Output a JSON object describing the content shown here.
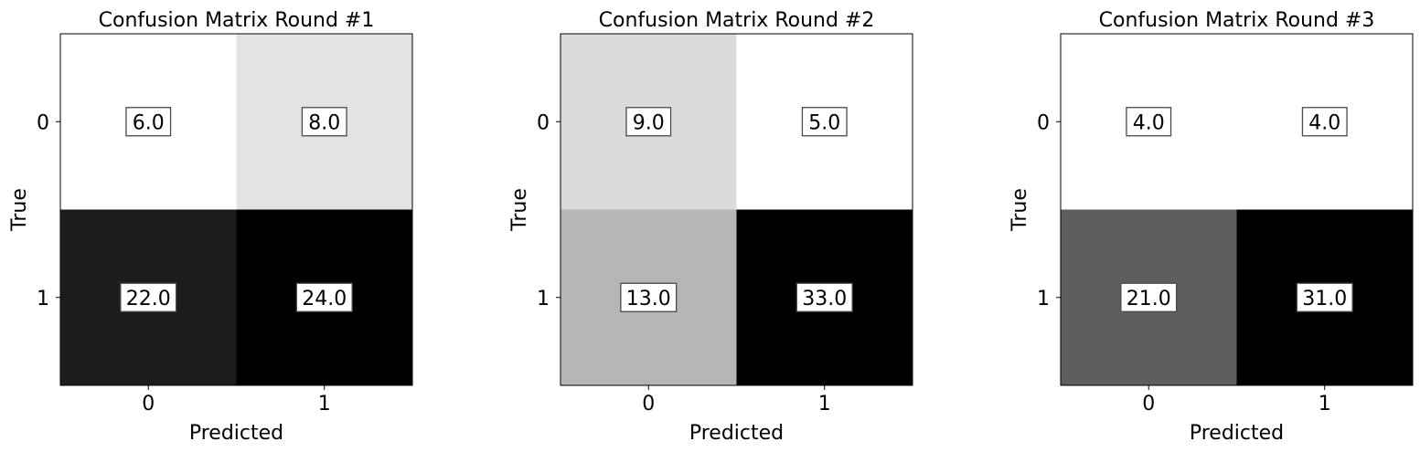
{
  "chart_data": [
    {
      "type": "heatmap",
      "title": "Confusion Matrix Round #1",
      "xlabel": "Predicted",
      "ylabel": "True",
      "x_tick_labels": [
        "0",
        "1"
      ],
      "y_tick_labels": [
        "0",
        "1"
      ],
      "matrix": [
        [
          6.0,
          8.0
        ],
        [
          22.0,
          24.0
        ]
      ],
      "cell_labels": [
        [
          "6.0",
          "8.0"
        ],
        [
          "22.0",
          "24.0"
        ]
      ],
      "colormap": "Greys"
    },
    {
      "type": "heatmap",
      "title": "Confusion Matrix Round #2",
      "xlabel": "Predicted",
      "ylabel": "True",
      "x_tick_labels": [
        "0",
        "1"
      ],
      "y_tick_labels": [
        "0",
        "1"
      ],
      "matrix": [
        [
          9.0,
          5.0
        ],
        [
          13.0,
          33.0
        ]
      ],
      "cell_labels": [
        [
          "9.0",
          "5.0"
        ],
        [
          "13.0",
          "33.0"
        ]
      ],
      "colormap": "Greys"
    },
    {
      "type": "heatmap",
      "title": "Confusion Matrix Round #3",
      "xlabel": "Predicted",
      "ylabel": "True",
      "x_tick_labels": [
        "0",
        "1"
      ],
      "y_tick_labels": [
        "0",
        "1"
      ],
      "matrix": [
        [
          4.0,
          4.0
        ],
        [
          21.0,
          31.0
        ]
      ],
      "cell_labels": [
        [
          "4.0",
          "4.0"
        ],
        [
          "21.0",
          "31.0"
        ]
      ],
      "colormap": "Greys"
    }
  ]
}
